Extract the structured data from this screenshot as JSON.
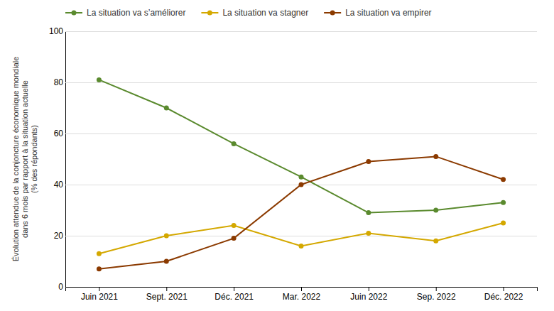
{
  "chart_data": {
    "type": "line",
    "categories": [
      "Juin 2021",
      "Sept. 2021",
      "Déc. 2021",
      "Mar. 2022",
      "Juin 2022",
      "Sep. 2022",
      "Déc. 2022"
    ],
    "series": [
      {
        "name": "La situation va s’améliorer",
        "color": "#5a8a2e",
        "marker": "circle",
        "values": [
          81,
          70,
          56,
          43,
          29,
          30,
          33
        ]
      },
      {
        "name": "La situation va stagner",
        "color": "#d4a800",
        "marker": "circle",
        "values": [
          13,
          20,
          24,
          16,
          21,
          18,
          25
        ]
      },
      {
        "name": "La situation va empirer",
        "color": "#8b3a00",
        "marker": "circle",
        "values": [
          7,
          10,
          19,
          40,
          49,
          51,
          42
        ]
      }
    ],
    "y_label": [
      "Évolution attendue de la conjoncture économique mondiale",
      "dans 6 mois par rapport à la situation actuelle",
      "(% des répondants)"
    ],
    "ylim": [
      0,
      100
    ],
    "yticks": [
      0,
      20,
      40,
      60,
      80,
      100
    ],
    "grid": true,
    "legend": "top"
  }
}
